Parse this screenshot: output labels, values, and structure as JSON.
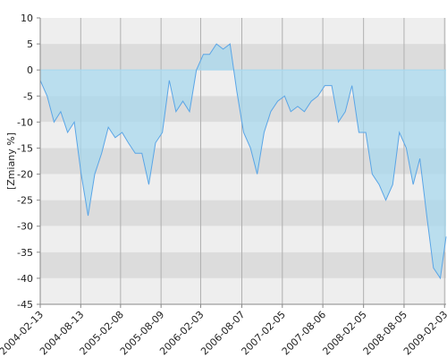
{
  "chart_data": {
    "type": "area",
    "y_label": "[Zmiany %]",
    "x": [
      "2004-02-13",
      "2004-03-15",
      "2004-04-15",
      "2004-05-15",
      "2004-06-15",
      "2004-07-15",
      "2004-08-15",
      "2004-09-15",
      "2004-10-15",
      "2004-11-15",
      "2004-12-15",
      "2005-01-15",
      "2005-02-15",
      "2005-03-15",
      "2005-04-15",
      "2005-05-15",
      "2005-06-15",
      "2005-07-15",
      "2005-08-15",
      "2005-09-15",
      "2005-10-15",
      "2005-11-15",
      "2005-12-15",
      "2006-01-15",
      "2006-02-15",
      "2006-03-15",
      "2006-04-15",
      "2006-05-15",
      "2006-06-15",
      "2006-07-15",
      "2006-08-15",
      "2006-09-15",
      "2006-10-15",
      "2006-11-15",
      "2006-12-15",
      "2007-01-15",
      "2007-02-15",
      "2007-03-15",
      "2007-04-15",
      "2007-05-15",
      "2007-06-15",
      "2007-07-15",
      "2007-08-15",
      "2007-09-15",
      "2007-10-15",
      "2007-11-15",
      "2007-12-15",
      "2008-01-15",
      "2008-02-15",
      "2008-03-15",
      "2008-04-15",
      "2008-05-15",
      "2008-06-15",
      "2008-07-15",
      "2008-08-15",
      "2008-09-15",
      "2008-10-15",
      "2008-11-15",
      "2008-12-15",
      "2009-01-15",
      "2009-02-10"
    ],
    "values": [
      -2,
      -5,
      -10,
      -8,
      -12,
      -10,
      -20,
      -28,
      -20,
      -16,
      -11,
      -13,
      -12,
      -14,
      -16,
      -16,
      -22,
      -14,
      -12,
      -2,
      -8,
      -6,
      -8,
      0,
      3,
      3,
      5,
      4,
      5,
      -4,
      -12,
      -15,
      -20,
      -12,
      -8,
      -6,
      -5,
      -8,
      -7,
      -8,
      -6,
      -5,
      -3,
      -3,
      -10,
      -8,
      -3,
      -12,
      -12,
      -20,
      -22,
      -25,
      -22,
      -12,
      -15,
      -22,
      -17,
      -28,
      -38,
      -40,
      -32
    ],
    "line_color": "#5aa5e6",
    "fill_color": "#a8d8ee",
    "xlim": [
      "2004-02-13",
      "2009-02-10"
    ],
    "xticks": [
      "2004-02-13",
      "2004-08-13",
      "2005-02-08",
      "2005-08-09",
      "2006-02-03",
      "2006-08-07",
      "2007-02-05",
      "2007-08-06",
      "2008-02-05",
      "2008-08-05",
      "2009-02-03"
    ],
    "ylim": [
      -45,
      10
    ],
    "yticks": [
      -45,
      -40,
      -35,
      -30,
      -25,
      -20,
      -15,
      -10,
      -5,
      0,
      5,
      10
    ],
    "grid": true
  }
}
